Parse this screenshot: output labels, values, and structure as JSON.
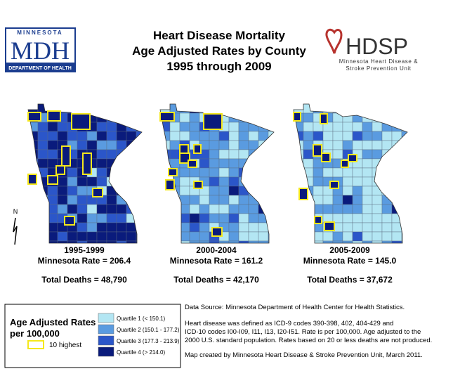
{
  "header": {
    "logo": {
      "top": "MINNESOTA",
      "main": "MDH",
      "bottom": "DEPARTMENT OF HEALTH"
    },
    "title": [
      "Heart Disease Mortality",
      "Age Adjusted Rates by County",
      "1995 through 2009"
    ],
    "hdsp": {
      "name": "HDSP",
      "line1": "Minnesota Heart Disease &",
      "line2": "Stroke Prevention Unit"
    }
  },
  "maps": [
    {
      "period": "1995-1999",
      "rate": "Minnesota Rate = 206.4",
      "deaths": "Total Deaths = 48,790"
    },
    {
      "period": "2000-2004",
      "rate": "Minnesota Rate = 161.2",
      "deaths": "Total Deaths = 42,170"
    },
    {
      "period": "2005-2009",
      "rate": "Minnesota Rate = 145.0",
      "deaths": "Total Deaths = 37,672"
    }
  ],
  "north": "N",
  "legend": {
    "title": [
      "Age Adjusted Rates",
      "per 100,000"
    ],
    "highlight": "10 highest",
    "quartiles": [
      "Quartile 1 (< 150.1)",
      "Quartile 2 (150.1 - 177.2)",
      "Quartile 3 (177.3 - 213.9)",
      "Quartile 4 (> 214.0)"
    ]
  },
  "notes": [
    "Data Source: Minnesota Department of Health Center for Health Statistics.",
    "Heart disease was defined as ICD-9 codes 390-398, 402, 404-429 and",
    "ICD-10 codes I00-I09, I11, I13, I20-I51. Rate is per 100,000. Age adjusted to the",
    "2000 U.S. standard population. Rates based on 20 or less deaths are not produced.",
    "Map created by Minnesota Heart Disease & Stroke Prevention Unit, March 2011."
  ]
}
